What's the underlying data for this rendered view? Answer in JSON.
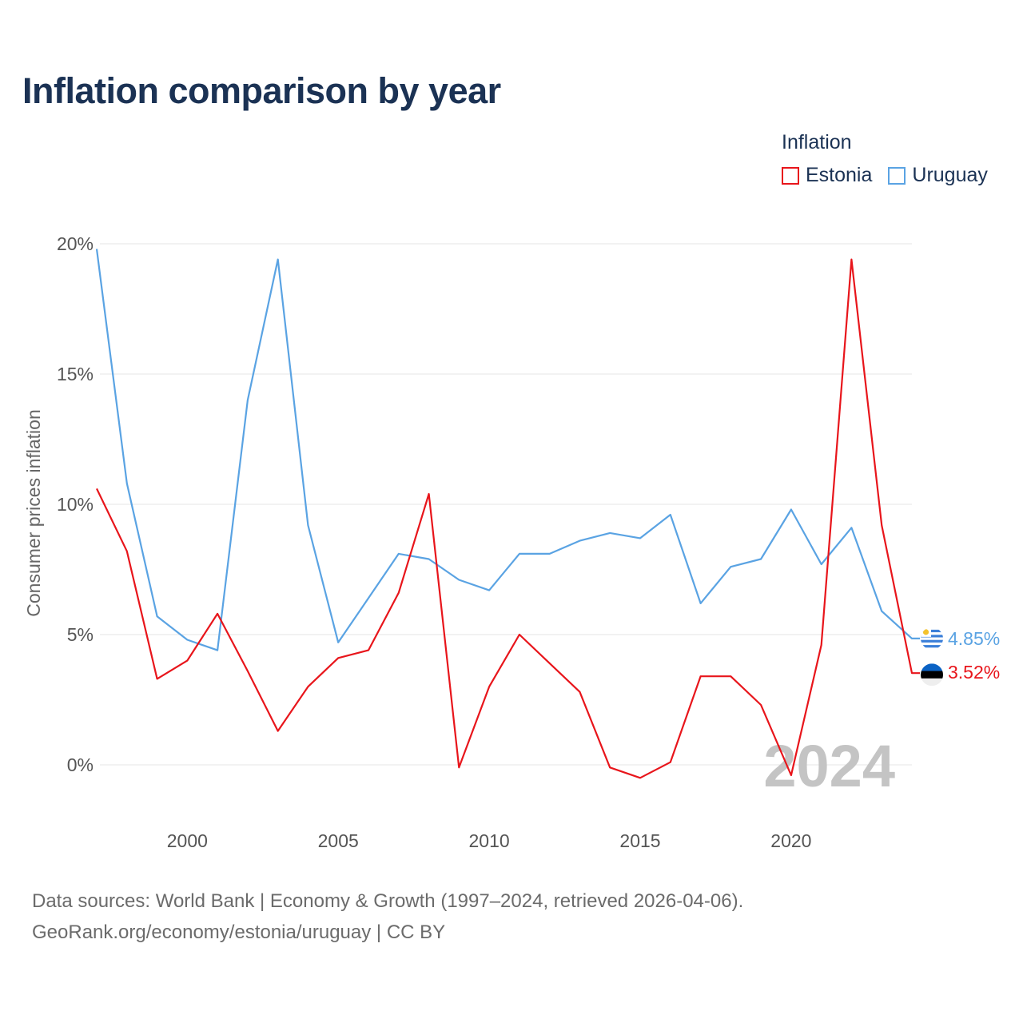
{
  "chart_data": {
    "type": "line",
    "title": "Inflation comparison by year",
    "legend_title": "Inflation",
    "ylabel": "Consumer prices inflation",
    "xlabel": "",
    "xlim": [
      1997,
      2024
    ],
    "ylim": [
      0,
      20
    ],
    "y_ticks": [
      0,
      5,
      10,
      15,
      20
    ],
    "y_tick_labels": [
      "0%",
      "5%",
      "10%",
      "15%",
      "20%"
    ],
    "x_ticks": [
      2000,
      2005,
      2010,
      2015,
      2020
    ],
    "x_tick_labels": [
      "2000",
      "2005",
      "2010",
      "2015",
      "2020"
    ],
    "year_watermark": "2024",
    "x": [
      1997,
      1998,
      1999,
      2000,
      2001,
      2002,
      2003,
      2004,
      2005,
      2006,
      2007,
      2008,
      2009,
      2010,
      2011,
      2012,
      2013,
      2014,
      2015,
      2016,
      2017,
      2018,
      2019,
      2020,
      2021,
      2022,
      2023,
      2024
    ],
    "series": [
      {
        "name": "Estonia",
        "color": "#e8151b",
        "end_label": "3.52%",
        "flag": "estonia-flag-icon",
        "values": [
          10.6,
          8.2,
          3.3,
          4.0,
          5.8,
          3.6,
          1.3,
          3.0,
          4.1,
          4.4,
          6.6,
          10.4,
          -0.1,
          3.0,
          5.0,
          3.9,
          2.8,
          -0.1,
          -0.5,
          0.1,
          3.4,
          3.4,
          2.3,
          -0.4,
          4.6,
          19.4,
          9.2,
          3.52
        ]
      },
      {
        "name": "Uruguay",
        "color": "#5aa3e3",
        "end_label": "4.85%",
        "flag": "uruguay-flag-icon",
        "values": [
          19.8,
          10.8,
          5.7,
          4.8,
          4.4,
          14.0,
          19.4,
          9.2,
          4.7,
          6.4,
          8.1,
          7.9,
          7.1,
          6.7,
          8.1,
          8.1,
          8.6,
          8.9,
          8.7,
          9.6,
          6.2,
          7.6,
          7.9,
          9.8,
          7.7,
          9.1,
          5.9,
          4.85
        ]
      }
    ]
  },
  "footer": {
    "source_line": "Data sources: World Bank | Economy & Growth (1997–2024, retrieved 2026-04-06).",
    "link_line": "GeoRank.org/economy/estonia/uruguay | CC BY"
  }
}
